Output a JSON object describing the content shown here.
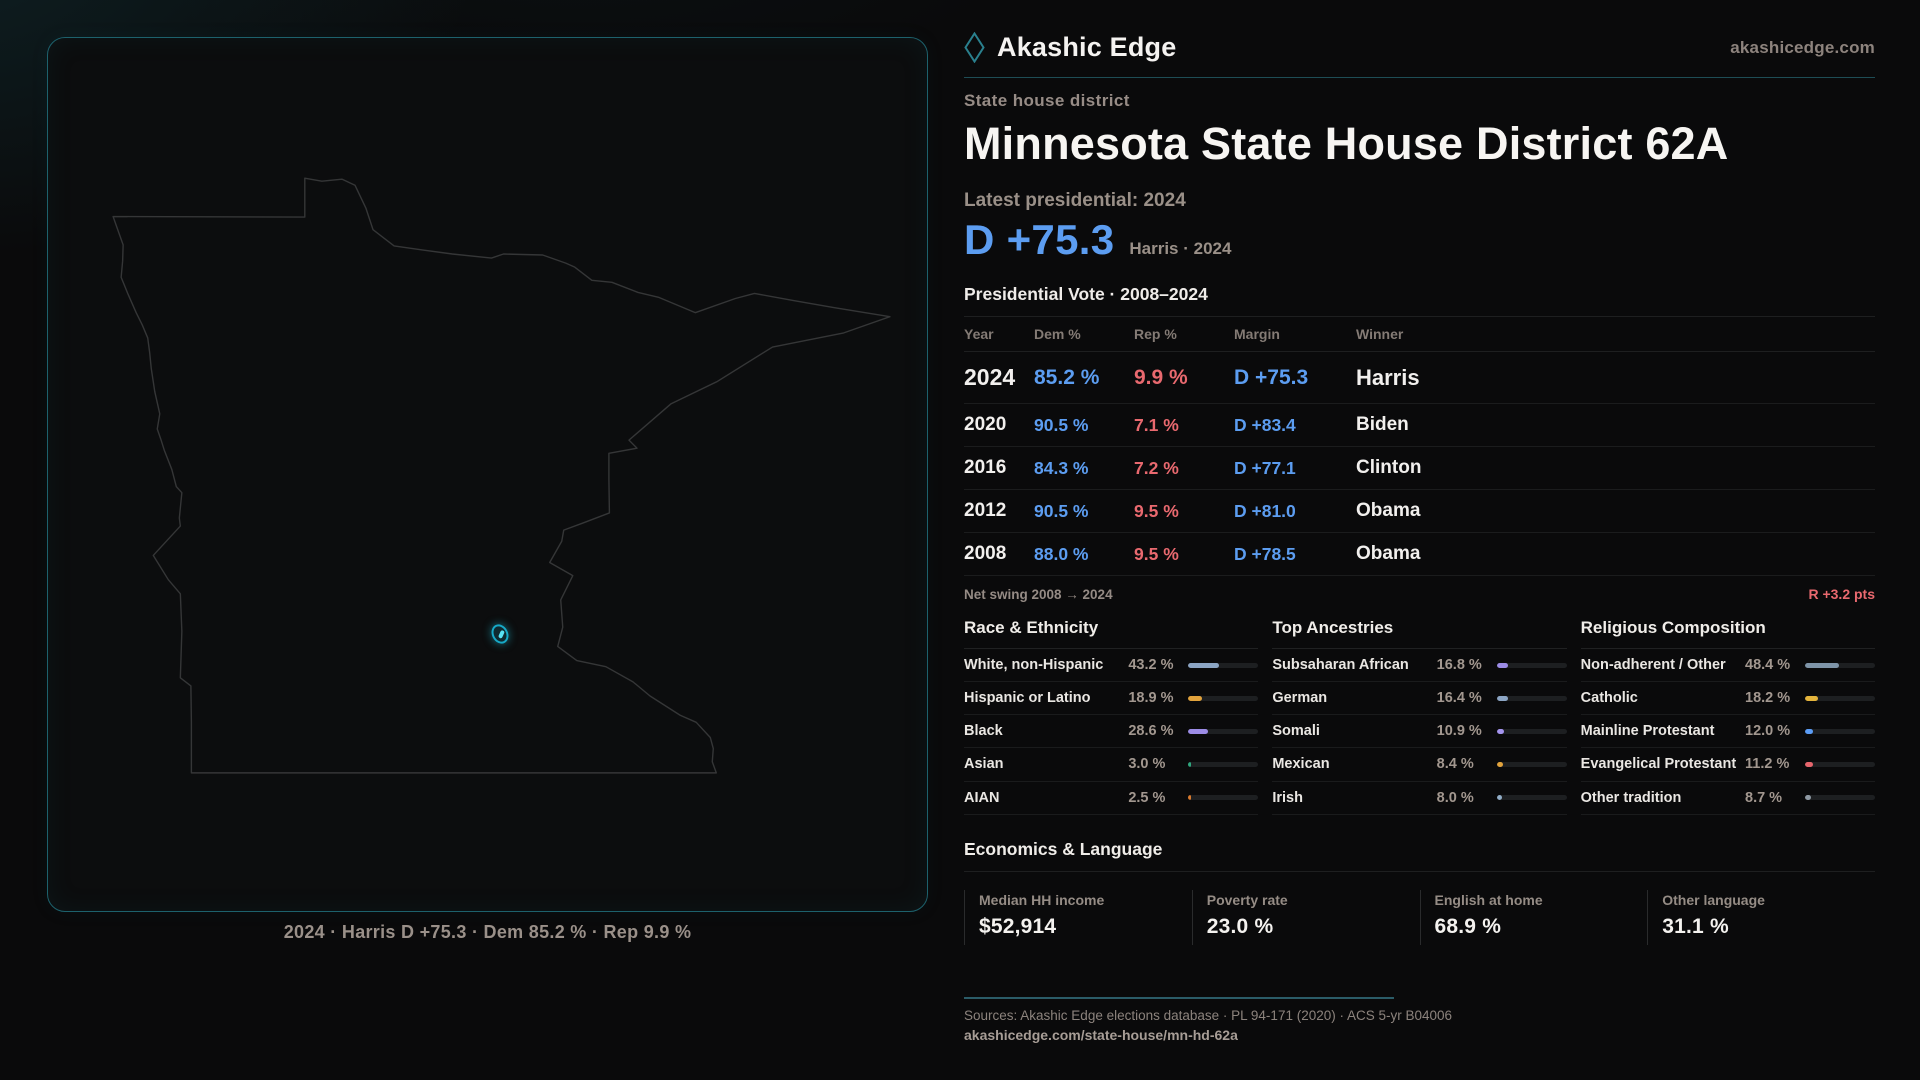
{
  "brand": {
    "name": "Akashic Edge",
    "domain": "akashicedge.com",
    "logo_icon": "diamond-icon"
  },
  "page": {
    "kicker": "State house district",
    "title": "Minnesota State House District 62A",
    "latest_label": "Latest presidential: 2024",
    "headline_margin": "D +75.3",
    "headline_context": "Harris · 2024"
  },
  "map": {
    "caption": "2024 · Harris D +75.3 · Dem 85.2 % · Rep 9.9 %"
  },
  "vote_table": {
    "title": "Presidential Vote · 2008–2024",
    "columns": {
      "year": "Year",
      "dem": "Dem %",
      "rep": "Rep %",
      "margin": "Margin",
      "winner": "Winner"
    },
    "rows": [
      {
        "year": "2024",
        "dem": "85.2 %",
        "rep": "9.9 %",
        "margin": "D +75.3",
        "winner": "Harris"
      },
      {
        "year": "2020",
        "dem": "90.5 %",
        "rep": "7.1 %",
        "margin": "D +83.4",
        "winner": "Biden"
      },
      {
        "year": "2016",
        "dem": "84.3 %",
        "rep": "7.2 %",
        "margin": "D +77.1",
        "winner": "Clinton"
      },
      {
        "year": "2012",
        "dem": "90.5 %",
        "rep": "9.5 %",
        "margin": "D +81.0",
        "winner": "Obama"
      },
      {
        "year": "2008",
        "dem": "88.0 %",
        "rep": "9.5 %",
        "margin": "D +78.5",
        "winner": "Obama"
      }
    ],
    "net_swing_label": "Net swing 2008 → 2024",
    "net_swing_value": "R +3.2 pts"
  },
  "demographics": [
    {
      "title": "Race & Ethnicity",
      "rows": [
        {
          "label": "White, non-Hispanic",
          "value": "43.2 %",
          "pct": 43.2,
          "color": "#8CA5C4"
        },
        {
          "label": "Hispanic or Latino",
          "value": "18.9 %",
          "pct": 18.9,
          "color": "#E2A33C"
        },
        {
          "label": "Black",
          "value": "28.6 %",
          "pct": 28.6,
          "color": "#9C8CE6"
        },
        {
          "label": "Asian",
          "value": "3.0 %",
          "pct": 3.0,
          "color": "#2FA77E"
        },
        {
          "label": "AIAN",
          "value": "2.5 %",
          "pct": 2.5,
          "color": "#D97A2D"
        }
      ]
    },
    {
      "title": "Top Ancestries",
      "rows": [
        {
          "label": "Subsaharan African",
          "value": "16.8 %",
          "pct": 16.8,
          "color": "#9C8CE6"
        },
        {
          "label": "German",
          "value": "16.4 %",
          "pct": 16.4,
          "color": "#8CA5C4"
        },
        {
          "label": "Somali",
          "value": "10.9 %",
          "pct": 10.9,
          "color": "#A494EE"
        },
        {
          "label": "Mexican",
          "value": "8.4 %",
          "pct": 8.4,
          "color": "#E2A33C"
        },
        {
          "label": "Irish",
          "value": "8.0 %",
          "pct": 8.0,
          "color": "#92AEC8"
        }
      ]
    },
    {
      "title": "Religious Composition",
      "rows": [
        {
          "label": "Non-adherent / Other",
          "value": "48.4 %",
          "pct": 48.4,
          "color": "#7E94A8"
        },
        {
          "label": "Catholic",
          "value": "18.2 %",
          "pct": 18.2,
          "color": "#E4B43C"
        },
        {
          "label": "Mainline Protestant",
          "value": "12.0 %",
          "pct": 12.0,
          "color": "#5B9CF5"
        },
        {
          "label": "Evangelical Protestant",
          "value": "11.2 %",
          "pct": 11.2,
          "color": "#E6656C"
        },
        {
          "label": "Other tradition",
          "value": "8.7 %",
          "pct": 8.7,
          "color": "#8E99A3"
        }
      ]
    }
  ],
  "economics": {
    "title": "Economics & Language",
    "stats": [
      {
        "label": "Median HH income",
        "value": "$52,914"
      },
      {
        "label": "Poverty rate",
        "value": "23.0 %"
      },
      {
        "label": "English at home",
        "value": "68.9 %"
      },
      {
        "label": "Other language",
        "value": "31.1 %"
      }
    ]
  },
  "footer": {
    "sources": "Sources: Akashic Edge elections database · PL 94-171 (2020) · ACS 5-yr B04006",
    "permalink": "akashicedge.com/state-house/mn-hd-62a"
  },
  "colors": {
    "dem_blue": "#5c9df1",
    "rep_red": "#e9696f",
    "accent_teal": "#1d616c",
    "marker_cyan": "#17a9c7"
  }
}
